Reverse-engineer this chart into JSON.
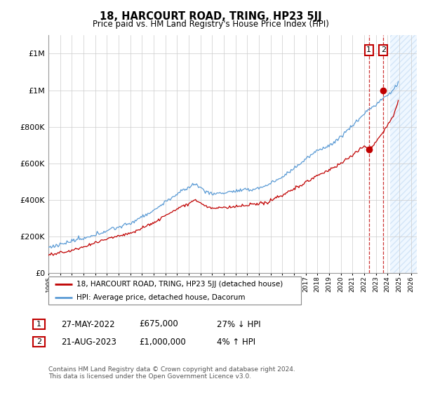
{
  "title": "18, HARCOURT ROAD, TRING, HP23 5JJ",
  "subtitle": "Price paid vs. HM Land Registry's House Price Index (HPI)",
  "footer": "Contains HM Land Registry data © Crown copyright and database right 2024.\nThis data is licensed under the Open Government Licence v3.0.",
  "legend_line1": "18, HARCOURT ROAD, TRING, HP23 5JJ (detached house)",
  "legend_line2": "HPI: Average price, detached house, Dacorum",
  "transaction1_date": "27-MAY-2022",
  "transaction1_price": "£675,000",
  "transaction1_hpi": "27% ↓ HPI",
  "transaction2_date": "21-AUG-2023",
  "transaction2_price": "£1,000,000",
  "transaction2_hpi": "4% ↑ HPI",
  "hpi_color": "#5b9bd5",
  "price_color": "#c00000",
  "marker_color": "#c00000",
  "transaction_box_color": "#c00000",
  "shade_color": "#ddeeff",
  "ylim": [
    0,
    1300000
  ],
  "yticks": [
    0,
    200000,
    400000,
    600000,
    800000,
    1000000,
    1200000
  ],
  "xlim_start": 1995.0,
  "xlim_end": 2026.5,
  "xticks": [
    1995,
    1996,
    1997,
    1998,
    1999,
    2000,
    2001,
    2002,
    2003,
    2004,
    2005,
    2006,
    2007,
    2008,
    2009,
    2010,
    2011,
    2012,
    2013,
    2014,
    2015,
    2016,
    2017,
    2018,
    2019,
    2020,
    2021,
    2022,
    2023,
    2024,
    2025,
    2026
  ],
  "t1_year": 2022.4,
  "t2_year": 2023.64,
  "t1_price": 675000,
  "t2_price": 1000000,
  "shade_start": 2024.25
}
